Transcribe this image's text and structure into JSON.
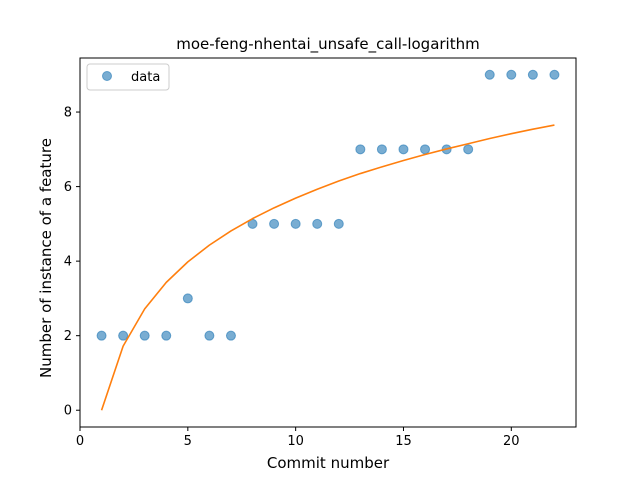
{
  "chart_data": {
    "type": "scatter",
    "title": "moe-feng-nhentai_unsafe_call-logarithm",
    "xlabel": "Commit number",
    "ylabel": "Number of instance of a feature",
    "xlim": [
      0,
      23
    ],
    "ylim": [
      -0.45,
      9.45
    ],
    "xticks": [
      0,
      5,
      10,
      15,
      20
    ],
    "yticks": [
      0,
      2,
      4,
      6,
      8
    ],
    "grid": false,
    "legend": {
      "placement": "top-left",
      "entries": [
        "data"
      ]
    },
    "series": [
      {
        "name": "data",
        "kind": "scatter",
        "color": "#1f77b4",
        "x": [
          1,
          2,
          3,
          4,
          5,
          6,
          7,
          8,
          9,
          10,
          11,
          12,
          13,
          14,
          15,
          16,
          17,
          18,
          19,
          20,
          21,
          22
        ],
        "y": [
          2,
          2,
          2,
          2,
          3,
          2,
          2,
          5,
          5,
          5,
          5,
          5,
          7,
          7,
          7,
          7,
          7,
          7,
          9,
          9,
          9,
          9
        ]
      },
      {
        "kind": "line",
        "color": "#ff7f0e",
        "x": [
          1,
          2,
          3,
          4,
          5,
          6,
          7,
          8,
          9,
          10,
          11,
          12,
          13,
          14,
          15,
          16,
          17,
          18,
          19,
          20,
          21,
          22
        ],
        "y": [
          0.0,
          1.72,
          2.72,
          3.43,
          3.98,
          4.43,
          4.81,
          5.14,
          5.43,
          5.69,
          5.93,
          6.15,
          6.35,
          6.53,
          6.7,
          6.86,
          7.01,
          7.15,
          7.29,
          7.42,
          7.54,
          7.65
        ]
      }
    ]
  }
}
